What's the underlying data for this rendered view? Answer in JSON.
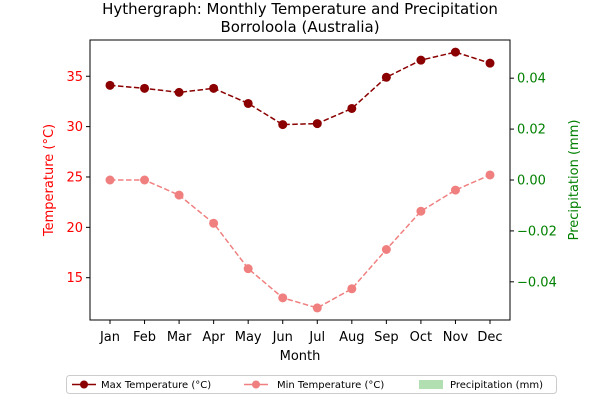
{
  "chart_data": {
    "type": "line",
    "title": "Hythergraph: Monthly Temperature and Precipitation",
    "subtitle": "Borroloola (Australia)",
    "xlabel": "Month",
    "ylabel_left": "Temperature (°C)",
    "ylabel_right": "Precipitation (mm)",
    "categories": [
      "Jan",
      "Feb",
      "Mar",
      "Apr",
      "May",
      "Jun",
      "Jul",
      "Aug",
      "Sep",
      "Oct",
      "Nov",
      "Dec"
    ],
    "series": [
      {
        "name": "Max Temperature (°C)",
        "axis": "left",
        "color": "#8b0000",
        "style": "dashed-line-circles",
        "values": [
          34.1,
          33.8,
          33.4,
          33.8,
          32.3,
          30.2,
          30.3,
          31.8,
          34.9,
          36.6,
          37.4,
          36.3
        ]
      },
      {
        "name": "Min Temperature (°C)",
        "axis": "left",
        "color": "#f08080",
        "style": "dashed-line-circles",
        "values": [
          24.7,
          24.7,
          23.2,
          20.4,
          15.9,
          13.0,
          12.0,
          13.9,
          17.8,
          21.6,
          23.7,
          25.2
        ]
      },
      {
        "name": "Precipitation (mm)",
        "axis": "right",
        "color": "#b2dfb2",
        "style": "bar",
        "values": [
          0,
          0,
          0,
          0,
          0,
          0,
          0,
          0,
          0,
          0,
          0,
          0
        ]
      }
    ],
    "ylim_left": [
      10.8,
      38.6
    ],
    "ylim_right": [
      -0.055,
      0.055
    ],
    "yticks_left": [
      "15",
      "20",
      "25",
      "30",
      "35"
    ],
    "yticks_right": [
      "−0.04",
      "−0.02",
      "0.00",
      "0.02",
      "0.04"
    ],
    "left_axis_color": "#ff0000",
    "right_axis_color": "#008000",
    "legend_position": "bottom-center",
    "grid": false
  }
}
